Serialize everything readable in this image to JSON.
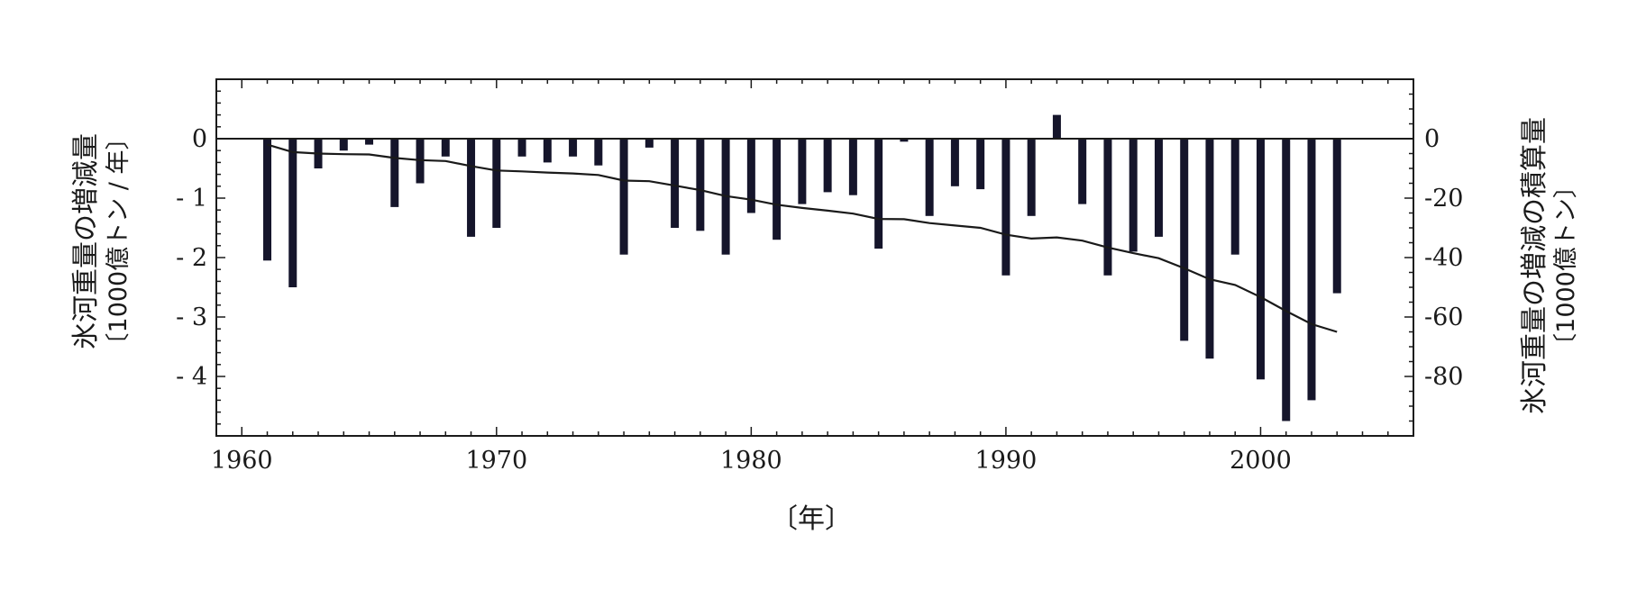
{
  "chart_data": {
    "type": "bar",
    "x": [
      1961,
      1962,
      1963,
      1964,
      1965,
      1966,
      1967,
      1968,
      1969,
      1970,
      1971,
      1972,
      1973,
      1974,
      1975,
      1976,
      1977,
      1978,
      1979,
      1980,
      1981,
      1982,
      1983,
      1984,
      1985,
      1986,
      1987,
      1988,
      1989,
      1990,
      1991,
      1992,
      1993,
      1994,
      1995,
      1996,
      1997,
      1998,
      1999,
      2000,
      2001,
      2002,
      2003
    ],
    "series": [
      {
        "type": "bar",
        "axis": "left",
        "values": [
          -2.05,
          -2.5,
          -0.5,
          -0.2,
          -0.1,
          -1.15,
          -0.75,
          -0.3,
          -1.65,
          -1.5,
          -0.3,
          -0.4,
          -0.3,
          -0.45,
          -1.95,
          -0.15,
          -1.5,
          -1.55,
          -1.95,
          -1.25,
          -1.7,
          -1.1,
          -0.9,
          -0.95,
          -1.85,
          -0.05,
          -1.3,
          -0.8,
          -0.85,
          -2.3,
          -1.3,
          0.4,
          -1.1,
          -2.3,
          -1.9,
          -1.65,
          -3.4,
          -3.7,
          -1.95,
          -4.05,
          -4.75,
          -4.4,
          -2.6
        ]
      },
      {
        "type": "line",
        "axis": "right",
        "values": [
          -2,
          -4.5,
          -5,
          -5.2,
          -5.3,
          -6.5,
          -7.2,
          -7.5,
          -9.2,
          -10.7,
          -11,
          -11.4,
          -11.7,
          -12.2,
          -14.1,
          -14.3,
          -15.8,
          -17.3,
          -19.3,
          -20.5,
          -22.2,
          -23.3,
          -24.2,
          -25.2,
          -27,
          -27.1,
          -28.4,
          -29.2,
          -30,
          -32.3,
          -33.6,
          -33.2,
          -34.3,
          -36.6,
          -38.5,
          -40.2,
          -43.6,
          -47.3,
          -49.2,
          -53.3,
          -58,
          -62.4,
          -65
        ]
      }
    ],
    "xlim": [
      1959,
      2006
    ],
    "ylim_left": [
      -5,
      1
    ],
    "ylim_right": [
      -100,
      20
    ],
    "xticks": [
      1960,
      1970,
      1980,
      1990,
      2000
    ],
    "yticks_left": [
      0,
      -1,
      -2,
      -3,
      -4
    ],
    "yticks_right": [
      0,
      -20,
      -40,
      -60,
      -80
    ],
    "xticks_labels": [
      "1960",
      "1970",
      "1980",
      "1990",
      "2000"
    ],
    "yticks_left_labels": [
      "0",
      "- 1",
      "- 2",
      "- 3",
      "- 4"
    ],
    "yticks_right_labels": [
      "0",
      "-20",
      "-40",
      "-60",
      "-80"
    ],
    "xlabel": "〔年〕",
    "ylabel_left": "氷河重量の増減量",
    "ylabel_left_unit": "〔1000億トン / 年〕",
    "ylabel_right": "氷河重量の増減の積算量",
    "ylabel_right_unit": "〔1000億トン〕",
    "grid": false,
    "colors": {
      "bar": "#15152b",
      "line": "#1a1a1a",
      "axis": "#1a1a1a"
    }
  }
}
